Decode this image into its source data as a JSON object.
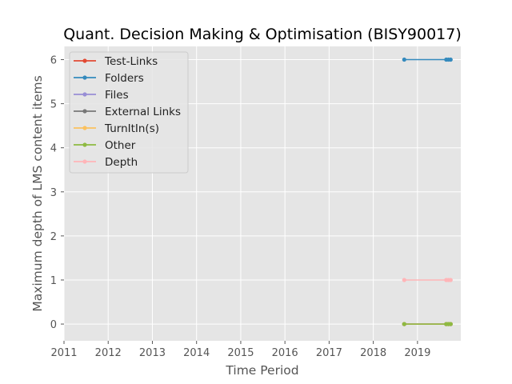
{
  "chart_data": {
    "type": "line",
    "title": "Quant. Decision Making & Optimisation (BISY90017)",
    "xlabel": "Time Period",
    "ylabel": "Maximum depth of LMS content items",
    "xlim": [
      2011.0,
      2019.98
    ],
    "ylim": [
      -0.38,
      6.3
    ],
    "xticks": [
      "2011",
      "2012",
      "2013",
      "2014",
      "2015",
      "2016",
      "2017",
      "2018",
      "2019"
    ],
    "yticks": [
      "0",
      "1",
      "2",
      "3",
      "4",
      "5",
      "6"
    ],
    "grid": true,
    "legend_position": "top-left",
    "series": [
      {
        "name": "Test-Links",
        "color": "#E24A33",
        "x": [
          2018.7,
          2019.65,
          2019.7,
          2019.75
        ],
        "y": [
          0,
          0,
          0,
          0
        ]
      },
      {
        "name": "Folders",
        "color": "#348ABD",
        "x": [
          2018.7,
          2019.65,
          2019.7,
          2019.75
        ],
        "y": [
          6,
          6,
          6,
          6
        ]
      },
      {
        "name": "Files",
        "color": "#988ED5",
        "x": [
          2018.7,
          2019.65,
          2019.7,
          2019.75
        ],
        "y": [
          0,
          0,
          0,
          0
        ]
      },
      {
        "name": "External Links",
        "color": "#777777",
        "x": [
          2018.7,
          2019.65,
          2019.7,
          2019.75
        ],
        "y": [
          0,
          0,
          0,
          0
        ]
      },
      {
        "name": "TurnItIn(s)",
        "color": "#FBC15E",
        "x": [
          2018.7,
          2019.65,
          2019.7,
          2019.75
        ],
        "y": [
          0,
          0,
          0,
          0
        ]
      },
      {
        "name": "Other",
        "color": "#8EBA42",
        "x": [
          2018.7,
          2019.65,
          2019.7,
          2019.75
        ],
        "y": [
          0,
          0,
          0,
          0
        ]
      },
      {
        "name": "Depth",
        "color": "#FFB5B8",
        "x": [
          2018.7,
          2019.65,
          2019.7,
          2019.75
        ],
        "y": [
          1,
          1,
          1,
          1
        ]
      }
    ]
  }
}
